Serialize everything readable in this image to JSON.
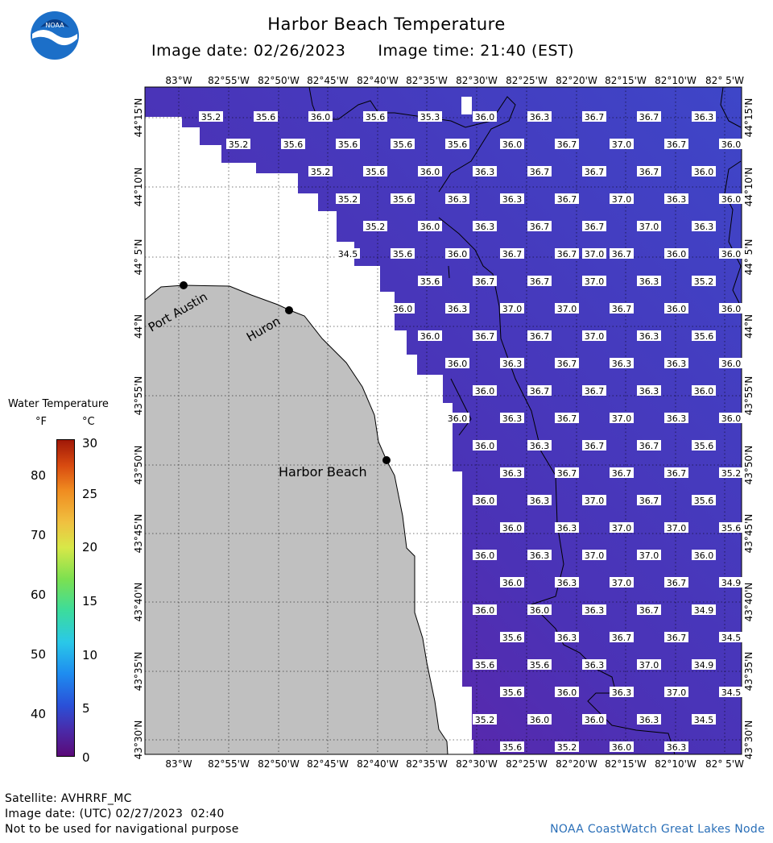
{
  "header": {
    "title": "Harbor Beach Temperature",
    "image_date": "Image date: 02/26/2023",
    "image_time": "Image time: 21:40 (EST)"
  },
  "legend": {
    "title": "Water Temperature",
    "unit_f": "°F",
    "unit_c": "°C",
    "f_ticks": [
      "80",
      "70",
      "60",
      "50",
      "40"
    ],
    "c_ticks": [
      "30",
      "25",
      "20",
      "15",
      "10",
      "5",
      "0"
    ]
  },
  "axes": {
    "lon_labels": [
      "83°W",
      "82°55'W",
      "82°50'W",
      "82°45'W",
      "82°40'W",
      "82°35'W",
      "82°30'W",
      "82°25'W",
      "82°20'W",
      "82°15'W",
      "82°10'W",
      "82° 5'W"
    ],
    "lat_labels": [
      "44°15'N",
      "44°10'N",
      "44° 5'N",
      "44°N",
      "43°55'N",
      "43°50'N",
      "43°45'N",
      "43°40'N",
      "43°35'N",
      "43°30'N"
    ]
  },
  "places": [
    {
      "name": "Port Austin"
    },
    {
      "name": "Huron"
    },
    {
      "name": "Harbor Beach"
    }
  ],
  "temperature_labels": [
    "35.2",
    "35.6",
    "36.0",
    "35.6",
    "35.3",
    "36.0",
    "36.3",
    "36.7",
    "36.7",
    "36.3",
    "35.2",
    "35.6",
    "35.6",
    "35.6",
    "35.6",
    "36.0",
    "36.7",
    "37.0",
    "36.7",
    "36.0",
    "35.2",
    "35.6",
    "36.0",
    "36.3",
    "36.7",
    "36.7",
    "36.7",
    "36.0",
    "35.2",
    "35.6",
    "36.3",
    "36.3",
    "36.7",
    "37.0",
    "36.3",
    "36.0",
    "35.2",
    "36.0",
    "36.3",
    "36.7",
    "36.7",
    "37.0",
    "36.3",
    "34.5",
    "35.6",
    "36.0",
    "36.7",
    "36.7",
    "37.0",
    "36.7",
    "36.0",
    "36.0",
    "35.6",
    "36.7",
    "36.7",
    "37.0",
    "36.3",
    "35.2",
    "36.0",
    "36.3",
    "37.0",
    "37.0",
    "36.7",
    "36.0",
    "36.0",
    "36.0",
    "36.7",
    "36.7",
    "37.0",
    "36.3",
    "35.6",
    "36.0",
    "36.3",
    "36.7",
    "36.3",
    "36.3",
    "36.0",
    "36.0",
    "36.7",
    "36.7",
    "36.3",
    "36.0",
    "36.0",
    "36.3",
    "36.7",
    "37.0",
    "36.3",
    "36.0",
    "36.0",
    "36.3",
    "36.7",
    "36.7",
    "35.6",
    "36.3",
    "36.7",
    "36.7",
    "36.7",
    "35.2",
    "36.0",
    "36.3",
    "37.0",
    "36.7",
    "35.6",
    "36.0",
    "36.3",
    "37.0",
    "37.0",
    "35.6",
    "36.0",
    "36.3",
    "37.0",
    "37.0",
    "36.0",
    "36.0",
    "36.3",
    "37.0",
    "36.7",
    "34.9",
    "36.0",
    "36.0",
    "36.3",
    "36.7",
    "34.9",
    "35.6",
    "36.3",
    "36.7",
    "36.7",
    "34.5",
    "35.6",
    "35.6",
    "36.3",
    "37.0",
    "34.9",
    "35.6",
    "36.0",
    "36.3",
    "37.0",
    "34.5",
    "35.2",
    "36.0",
    "36.0",
    "36.3",
    "34.5",
    "35.6",
    "35.2",
    "36.0",
    "36.3"
  ],
  "footer": {
    "satellite": "Satellite: AVHRRF_MC",
    "utc_date": "Image date: (UTC) 02/27/2023  02:40",
    "disclaimer": "Not to be used for navigational purpose",
    "credit": "NOAA CoastWatch Great Lakes Node"
  },
  "colors": {
    "water": "#4a34b4",
    "land": "#c0c0c0",
    "grid": "#555555"
  },
  "logo": {
    "text": "NOAA"
  }
}
